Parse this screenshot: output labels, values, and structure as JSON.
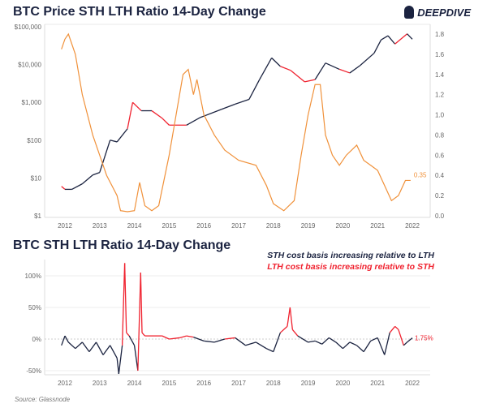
{
  "logo": {
    "text": "DEEPDIVE"
  },
  "source": "Source: Glassnode",
  "colors": {
    "sth": "#1b2340",
    "lth": "#f0222f",
    "ratio": "#f0913a"
  },
  "chart_data": [
    {
      "type": "line",
      "title": "BTC Price STH LTH Ratio 14-Day Change",
      "x_ticks": [
        "2012",
        "2013",
        "2014",
        "2015",
        "2016",
        "2017",
        "2018",
        "2019",
        "2020",
        "2021",
        "2022"
      ],
      "y_left": {
        "scale": "log",
        "ticks": [
          "$1",
          "$10",
          "$100",
          "$1,000",
          "$10,000",
          "$100,000"
        ],
        "ylim": [
          1,
          100000
        ]
      },
      "y_right": {
        "ticks": [
          "0.0",
          "0.2",
          "0.4",
          "0.6",
          "0.8",
          "1.0",
          "1.2",
          "1.4",
          "1.6",
          "1.8"
        ],
        "ylim": [
          0,
          1.8
        ]
      },
      "annotation": "0.35",
      "series": [
        {
          "axis": "left",
          "x": [
            2011.9,
            2012.0,
            2012.2,
            2012.5,
            2012.8,
            2013.0,
            2013.3,
            2013.5,
            2013.8,
            2013.95,
            2014.2,
            2014.5,
            2014.8,
            2015.0,
            2015.5,
            2015.9,
            2016.5,
            2016.9,
            2017.3,
            2017.6,
            2017.95,
            2018.2,
            2018.5,
            2018.9,
            2019.2,
            2019.5,
            2019.9,
            2020.2,
            2020.5,
            2020.9,
            2021.1,
            2021.3,
            2021.5,
            2021.85,
            2022.0
          ],
          "y": [
            6,
            5,
            5,
            7,
            12,
            14,
            100,
            90,
            200,
            1000,
            600,
            600,
            380,
            250,
            250,
            400,
            650,
            900,
            1200,
            4000,
            15000,
            9000,
            7000,
            3500,
            4000,
            11000,
            7500,
            6000,
            9500,
            20000,
            45000,
            58000,
            35000,
            65000,
            47000
          ]
        },
        {
          "axis": "right",
          "x": [
            2011.9,
            2012.0,
            2012.1,
            2012.3,
            2012.5,
            2012.8,
            2013.2,
            2013.5,
            2013.6,
            2013.8,
            2014.0,
            2014.15,
            2014.3,
            2014.5,
            2014.7,
            2015.0,
            2015.2,
            2015.4,
            2015.55,
            2015.7,
            2015.8,
            2016.0,
            2016.3,
            2016.6,
            2017.0,
            2017.5,
            2017.8,
            2018.0,
            2018.3,
            2018.6,
            2018.8,
            2019.0,
            2019.2,
            2019.35,
            2019.5,
            2019.7,
            2019.9,
            2020.1,
            2020.4,
            2020.6,
            2020.8,
            2021.0,
            2021.2,
            2021.4,
            2021.6,
            2021.8,
            2021.95
          ],
          "y": [
            1.65,
            1.75,
            1.8,
            1.6,
            1.2,
            0.8,
            0.4,
            0.2,
            0.05,
            0.04,
            0.05,
            0.33,
            0.1,
            0.05,
            0.1,
            0.6,
            1.0,
            1.4,
            1.45,
            1.2,
            1.35,
            1.0,
            0.8,
            0.65,
            0.55,
            0.5,
            0.3,
            0.12,
            0.05,
            0.15,
            0.6,
            1.0,
            1.3,
            1.3,
            0.8,
            0.6,
            0.5,
            0.6,
            0.7,
            0.55,
            0.5,
            0.45,
            0.3,
            0.15,
            0.2,
            0.35,
            0.35
          ]
        }
      ]
    },
    {
      "type": "line",
      "title": "BTC STH LTH Ratio 14-Day Change",
      "legend": [
        "STH cost basis increasing relative to LTH",
        "LTH cost basis increasing relative to STH"
      ],
      "x_ticks": [
        "2012",
        "2013",
        "2014",
        "2015",
        "2016",
        "2017",
        "2018",
        "2019",
        "2020",
        "2021",
        "2022"
      ],
      "y_ticks": [
        "-50%",
        "0%",
        "50%",
        "100%"
      ],
      "ylim": [
        -60,
        120
      ],
      "annotation": "1.75%",
      "x": [
        2011.9,
        2012.0,
        2012.1,
        2012.3,
        2012.5,
        2012.7,
        2012.9,
        2013.1,
        2013.3,
        2013.5,
        2013.55,
        2013.65,
        2013.72,
        2013.77,
        2013.85,
        2014.0,
        2014.1,
        2014.18,
        2014.22,
        2014.3,
        2014.5,
        2014.8,
        2015.0,
        2015.3,
        2015.5,
        2015.7,
        2016.0,
        2016.3,
        2016.6,
        2016.9,
        2017.2,
        2017.5,
        2017.8,
        2018.0,
        2018.2,
        2018.4,
        2018.48,
        2018.55,
        2018.7,
        2019.0,
        2019.2,
        2019.4,
        2019.6,
        2019.8,
        2020.0,
        2020.2,
        2020.4,
        2020.6,
        2020.8,
        2021.0,
        2021.2,
        2021.35,
        2021.5,
        2021.6,
        2021.75,
        2021.85,
        2022.0
      ],
      "y": [
        -10,
        5,
        -5,
        -15,
        -5,
        -20,
        -5,
        -25,
        -10,
        -30,
        -55,
        -10,
        120,
        10,
        5,
        -10,
        -50,
        105,
        10,
        5,
        5,
        5,
        0,
        2,
        5,
        3,
        -3,
        -5,
        0,
        2,
        -10,
        -5,
        -15,
        -20,
        10,
        20,
        50,
        15,
        5,
        -5,
        -3,
        -8,
        2,
        -5,
        -15,
        -5,
        -10,
        -20,
        -3,
        2,
        -25,
        10,
        20,
        15,
        -10,
        -5,
        1.75
      ]
    }
  ]
}
